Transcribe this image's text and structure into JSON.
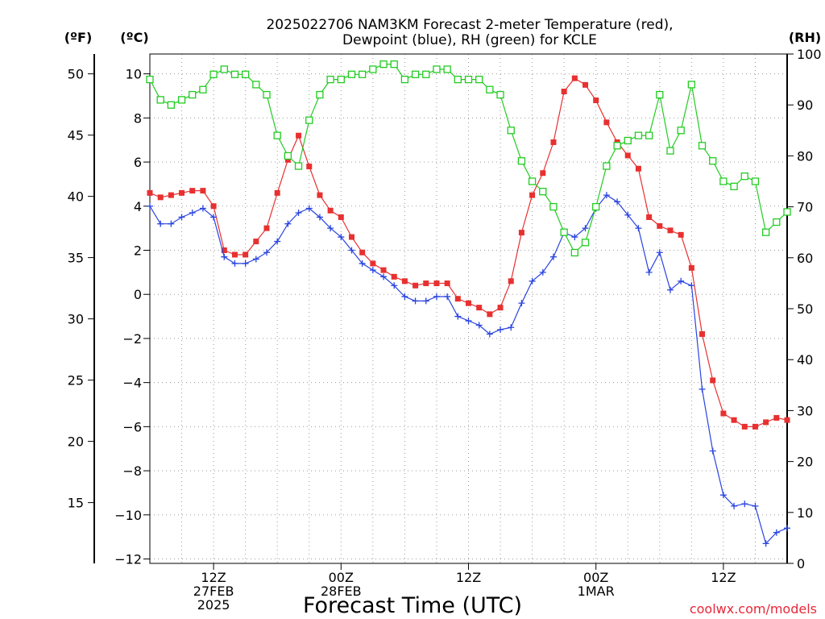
{
  "chart_data": {
    "type": "line",
    "title": [
      "2025022706 NAM3KM Forecast 2-meter Temperature (red),",
      "Dewpoint (blue), RH (green) for KCLE"
    ],
    "xlabel": "Forecast Time (UTC)",
    "credit": "coolwx.com/models",
    "left_f_label": "(ºF)",
    "left_c_label": "(ºC)",
    "right_label": "(RH)",
    "hours": [
      0,
      1,
      2,
      3,
      4,
      5,
      6,
      7,
      8,
      9,
      10,
      11,
      12,
      13,
      14,
      15,
      16,
      17,
      18,
      19,
      20,
      21,
      22,
      23,
      24,
      25,
      26,
      27,
      28,
      29,
      30,
      31,
      32,
      33,
      34,
      35,
      36,
      37,
      38,
      39,
      40,
      41,
      42,
      43,
      44,
      45,
      46,
      47,
      48,
      49,
      50,
      51,
      52,
      53,
      54,
      55,
      56,
      57,
      58,
      59,
      60
    ],
    "x_range_hours": [
      0,
      60
    ],
    "y_left_c_range": [
      -12.2,
      10.9
    ],
    "y_right_rh_range": [
      0,
      100
    ],
    "grid": true,
    "x_ticks": [
      {
        "hour": 6,
        "lines": [
          "12Z",
          "27FEB",
          "2025"
        ]
      },
      {
        "hour": 18,
        "lines": [
          "00Z",
          "28FEB"
        ]
      },
      {
        "hour": 30,
        "lines": [
          "12Z"
        ]
      },
      {
        "hour": 42,
        "lines": [
          "00Z",
          "1MAR"
        ]
      },
      {
        "hour": 54,
        "lines": [
          "12Z"
        ]
      }
    ],
    "yticks_c": [
      {
        "value": 10,
        "label": "10"
      },
      {
        "value": 8,
        "label": "8"
      },
      {
        "value": 6,
        "label": "6"
      },
      {
        "value": 4,
        "label": "4"
      },
      {
        "value": 2,
        "label": "2"
      },
      {
        "value": 0,
        "label": "0"
      },
      {
        "value": -2,
        "label": "−2"
      },
      {
        "value": -4,
        "label": "−4"
      },
      {
        "value": -6,
        "label": "−6"
      },
      {
        "value": -8,
        "label": "−8"
      },
      {
        "value": -10,
        "label": "−10"
      },
      {
        "value": -12,
        "label": "−12"
      }
    ],
    "yticks_f": [
      {
        "value": 50,
        "label": "50"
      },
      {
        "value": 45,
        "label": "45"
      },
      {
        "value": 40,
        "label": "40"
      },
      {
        "value": 35,
        "label": "35"
      },
      {
        "value": 30,
        "label": "30"
      },
      {
        "value": 25,
        "label": "25"
      },
      {
        "value": 20,
        "label": "20"
      },
      {
        "value": 15,
        "label": "15"
      }
    ],
    "yticks_rh": [
      {
        "value": 100,
        "label": "100"
      },
      {
        "value": 90,
        "label": "90"
      },
      {
        "value": 80,
        "label": "80"
      },
      {
        "value": 70,
        "label": "70"
      },
      {
        "value": 60,
        "label": "60"
      },
      {
        "value": 50,
        "label": "50"
      },
      {
        "value": 40,
        "label": "40"
      },
      {
        "value": 30,
        "label": "30"
      },
      {
        "value": 20,
        "label": "20"
      },
      {
        "value": 10,
        "label": "10"
      },
      {
        "value": 0,
        "label": "0"
      }
    ],
    "series": [
      {
        "name": "Temperature",
        "axis": "c",
        "color": "#e83030",
        "marker": "filled-square",
        "values": [
          4.6,
          4.4,
          4.5,
          4.6,
          4.7,
          4.7,
          4.0,
          2.0,
          1.8,
          1.8,
          2.4,
          3.0,
          4.6,
          6.1,
          7.2,
          5.8,
          4.5,
          3.8,
          3.5,
          2.6,
          1.9,
          1.4,
          1.1,
          0.8,
          0.6,
          0.4,
          0.5,
          0.5,
          0.5,
          -0.2,
          -0.4,
          -0.6,
          -0.9,
          -0.6,
          0.6,
          2.8,
          4.5,
          5.5,
          6.9,
          9.2,
          9.8,
          9.5,
          8.8,
          7.8,
          6.9,
          6.3,
          5.7,
          3.5,
          3.1,
          2.9,
          2.7,
          1.2,
          -1.8,
          -3.9,
          -5.4,
          -5.7,
          -6.0,
          -6.0,
          -5.8,
          -5.6,
          -5.7
        ]
      },
      {
        "name": "Dewpoint",
        "axis": "c",
        "color": "#2a44e0",
        "marker": "plus",
        "values": [
          4.0,
          3.2,
          3.2,
          3.5,
          3.7,
          3.9,
          3.5,
          1.7,
          1.4,
          1.4,
          1.6,
          1.9,
          2.4,
          3.2,
          3.7,
          3.9,
          3.5,
          3.0,
          2.6,
          2.0,
          1.4,
          1.1,
          0.8,
          0.4,
          -0.1,
          -0.3,
          -0.3,
          -0.1,
          -0.1,
          -1.0,
          -1.2,
          -1.4,
          -1.8,
          -1.6,
          -1.5,
          -0.4,
          0.6,
          1.0,
          1.7,
          2.8,
          2.6,
          3.0,
          3.9,
          4.5,
          4.2,
          3.6,
          3.0,
          1.0,
          1.9,
          0.2,
          0.6,
          0.4,
          -4.3,
          -7.1,
          -9.1,
          -9.6,
          -9.5,
          -9.6,
          -11.3,
          -10.8,
          -10.6
        ]
      },
      {
        "name": "RH",
        "axis": "rh",
        "color": "#22cc22",
        "marker": "open-square",
        "values": [
          95,
          91,
          90,
          91,
          92,
          93,
          96,
          97,
          96,
          96,
          94,
          92,
          84,
          80,
          78,
          87,
          92,
          95,
          95,
          96,
          96,
          97,
          98,
          98,
          95,
          96,
          96,
          97,
          97,
          95,
          95,
          95,
          93,
          92,
          85,
          79,
          75,
          73,
          70,
          65,
          61,
          63,
          70,
          78,
          82,
          83,
          84,
          84,
          92,
          81,
          85,
          94,
          82,
          79,
          75,
          74,
          76,
          75,
          65,
          67,
          69
        ]
      }
    ]
  }
}
